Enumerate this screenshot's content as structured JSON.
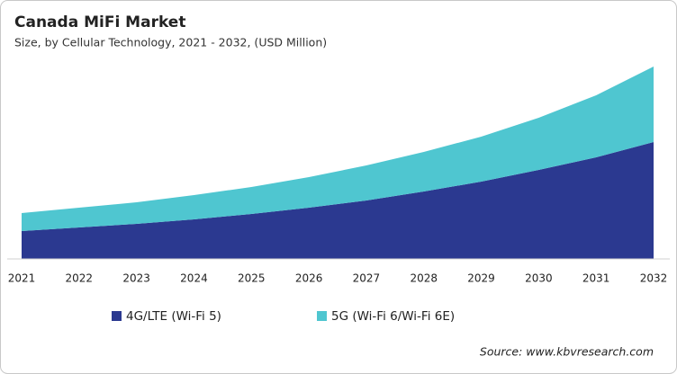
{
  "chart_data": {
    "type": "stacked-area",
    "title": "Canada  MiFi Market",
    "subtitle": "Size, by Cellular Technology, 2021 - 2032, (USD Million)",
    "source": "Source: www.kbvresearch.com",
    "categories": [
      "2021",
      "2022",
      "2023",
      "2024",
      "2025",
      "2026",
      "2027",
      "2028",
      "2029",
      "2030",
      "2031",
      "2032"
    ],
    "series": [
      {
        "name": "4G/LTE (Wi-Fi 5)",
        "color": "#2b3990",
        "values": [
          31,
          35,
          39,
          44,
          50,
          57,
          65,
          75,
          86,
          99,
          113,
          130
        ]
      },
      {
        "name": "5G (Wi-Fi 6/Wi-Fi 6E)",
        "color": "#4fc6d0",
        "values": [
          20,
          22,
          24,
          27,
          30,
          34,
          39,
          44,
          50,
          58,
          69,
          84
        ]
      }
    ],
    "ylim": [
      0,
      220
    ]
  }
}
